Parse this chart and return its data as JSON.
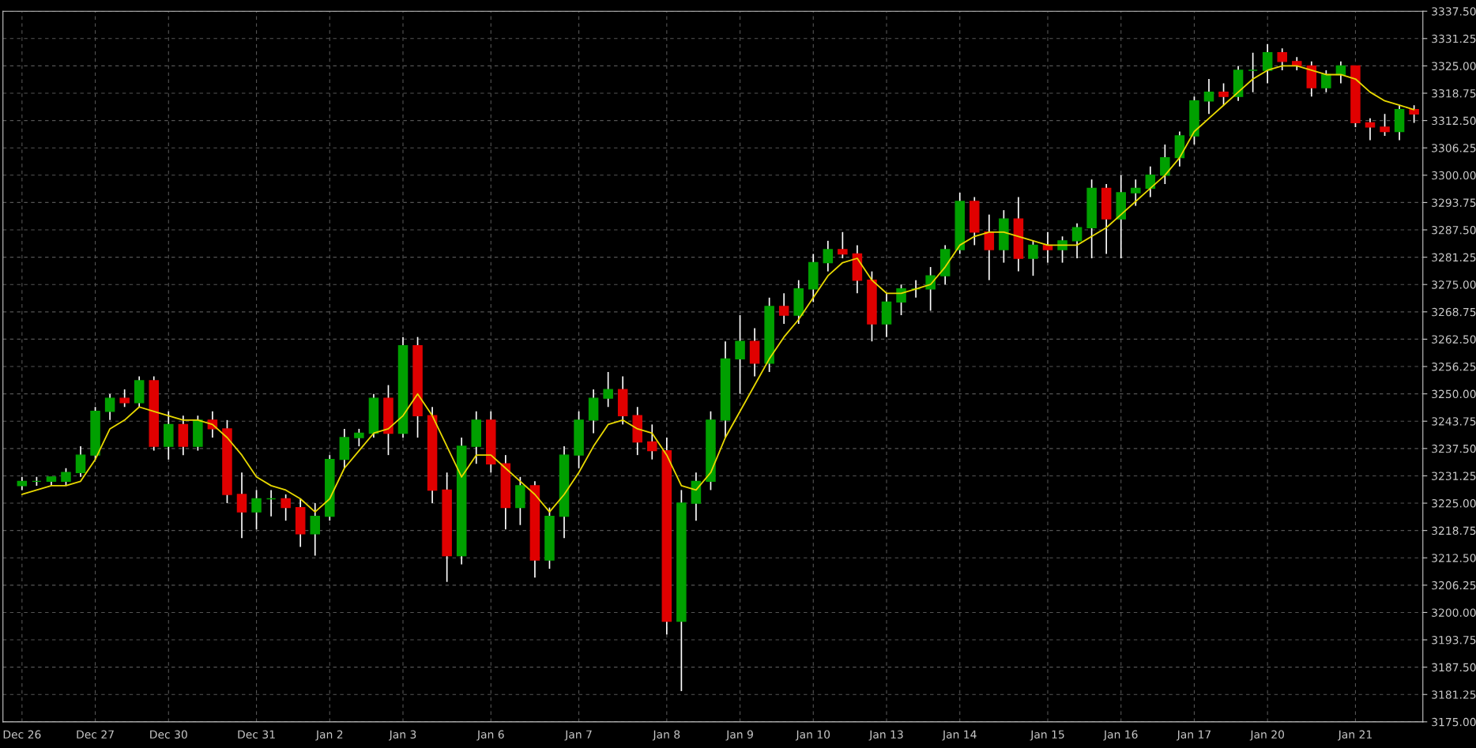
{
  "chart_data": {
    "type": "candlestick",
    "categories": [
      "Dec 26",
      null,
      null,
      null,
      null,
      "Dec 27",
      null,
      null,
      null,
      null,
      "Dec 30",
      null,
      null,
      null,
      null,
      null,
      "Dec 31",
      null,
      null,
      null,
      null,
      "Jan 2",
      null,
      null,
      null,
      null,
      "Jan 3",
      null,
      null,
      null,
      null,
      null,
      "Jan 6",
      null,
      null,
      null,
      null,
      null,
      "Jan 7",
      null,
      null,
      null,
      null,
      null,
      "Jan 8",
      null,
      null,
      null,
      null,
      "Jan 9",
      null,
      null,
      null,
      null,
      "Jan 10",
      null,
      null,
      null,
      null,
      "Jan 13",
      null,
      null,
      null,
      null,
      "Jan 14",
      null,
      null,
      null,
      null,
      null,
      "Jan 15",
      null,
      null,
      null,
      null,
      "Jan 16",
      null,
      null,
      null,
      null,
      "Jan 17",
      null,
      null,
      null,
      null,
      "Jan 20",
      null,
      null,
      null,
      null,
      null,
      "Jan 21",
      null,
      null,
      null,
      null
    ],
    "ohlc": [
      [
        3229,
        3231,
        3228,
        3230
      ],
      [
        3230,
        3231,
        3229,
        3230
      ],
      [
        3230,
        3231,
        3229,
        3231
      ],
      [
        3230,
        3233,
        3229,
        3232
      ],
      [
        3232,
        3238,
        3231,
        3236
      ],
      [
        3236,
        3247,
        3235,
        3246
      ],
      [
        3246,
        3250,
        3244,
        3249
      ],
      [
        3249,
        3251,
        3247,
        3248
      ],
      [
        3248,
        3254,
        3247,
        3253
      ],
      [
        3253,
        3254,
        3237,
        3238
      ],
      [
        3238,
        3246,
        3235,
        3243
      ],
      [
        3243,
        3245,
        3236,
        3238
      ],
      [
        3238,
        3245,
        3237,
        3244
      ],
      [
        3244,
        3246,
        3240,
        3242
      ],
      [
        3242,
        3244,
        3225,
        3227
      ],
      [
        3227,
        3232,
        3217,
        3223
      ],
      [
        3223,
        3228,
        3219,
        3226
      ],
      [
        3226,
        3228,
        3222,
        3226
      ],
      [
        3226,
        3227,
        3221,
        3224
      ],
      [
        3224,
        3226,
        3215,
        3218
      ],
      [
        3218,
        3225,
        3213,
        3222
      ],
      [
        3222,
        3236,
        3221,
        3235
      ],
      [
        3235,
        3242,
        3233,
        3240
      ],
      [
        3240,
        3242,
        3238,
        3241
      ],
      [
        3241,
        3250,
        3240,
        3249
      ],
      [
        3249,
        3252,
        3236,
        3241
      ],
      [
        3241,
        3263,
        3240,
        3261
      ],
      [
        3261,
        3263,
        3240,
        3245
      ],
      [
        3245,
        3247,
        3225,
        3228
      ],
      [
        3228,
        3232,
        3207,
        3213
      ],
      [
        3213,
        3240,
        3211,
        3238
      ],
      [
        3238,
        3246,
        3234,
        3244
      ],
      [
        3244,
        3246,
        3232,
        3234
      ],
      [
        3234,
        3236,
        3219,
        3224
      ],
      [
        3224,
        3231,
        3220,
        3229
      ],
      [
        3229,
        3230,
        3208,
        3212
      ],
      [
        3212,
        3224,
        3210,
        3222
      ],
      [
        3222,
        3238,
        3217,
        3236
      ],
      [
        3236,
        3246,
        3233,
        3244
      ],
      [
        3244,
        3251,
        3241,
        3249
      ],
      [
        3249,
        3255,
        3247,
        3251
      ],
      [
        3251,
        3254,
        3243,
        3245
      ],
      [
        3245,
        3247,
        3236,
        3239
      ],
      [
        3239,
        3243,
        3235,
        3237
      ],
      [
        3237,
        3240,
        3195,
        3198
      ],
      [
        3198,
        3228,
        3182,
        3225
      ],
      [
        3225,
        3232,
        3221,
        3230
      ],
      [
        3230,
        3246,
        3228,
        3244
      ],
      [
        3244,
        3262,
        3240,
        3258
      ],
      [
        3258,
        3268,
        3250,
        3262
      ],
      [
        3262,
        3265,
        3254,
        3257
      ],
      [
        3257,
        3272,
        3255,
        3270
      ],
      [
        3270,
        3273,
        3266,
        3268
      ],
      [
        3268,
        3276,
        3266,
        3274
      ],
      [
        3274,
        3282,
        3271,
        3280
      ],
      [
        3280,
        3285,
        3278,
        3283
      ],
      [
        3283,
        3287,
        3281,
        3282
      ],
      [
        3282,
        3284,
        3273,
        3276
      ],
      [
        3276,
        3278,
        3262,
        3266
      ],
      [
        3266,
        3273,
        3263,
        3271
      ],
      [
        3271,
        3275,
        3268,
        3274
      ],
      [
        3274,
        3276,
        3272,
        3274
      ],
      [
        3274,
        3279,
        3269,
        3277
      ],
      [
        3277,
        3284,
        3275,
        3283
      ],
      [
        3283,
        3296,
        3282,
        3294
      ],
      [
        3294,
        3295,
        3284,
        3287
      ],
      [
        3287,
        3291,
        3276,
        3283
      ],
      [
        3283,
        3292,
        3280,
        3290
      ],
      [
        3290,
        3295,
        3278,
        3281
      ],
      [
        3281,
        3285,
        3277,
        3284
      ],
      [
        3284,
        3287,
        3280,
        3283
      ],
      [
        3283,
        3286,
        3280,
        3285
      ],
      [
        3285,
        3289,
        3281,
        3288
      ],
      [
        3288,
        3299,
        3281,
        3297
      ],
      [
        3297,
        3298,
        3282,
        3290
      ],
      [
        3290,
        3300,
        3281,
        3296
      ],
      [
        3296,
        3299,
        3293,
        3297
      ],
      [
        3297,
        3302,
        3295,
        3300
      ],
      [
        3300,
        3307,
        3298,
        3304
      ],
      [
        3304,
        3310,
        3302,
        3309
      ],
      [
        3309,
        3318,
        3307,
        3317
      ],
      [
        3317,
        3322,
        3314,
        3319
      ],
      [
        3319,
        3321,
        3316,
        3318
      ],
      [
        3318,
        3325,
        3317,
        3324
      ],
      [
        3324,
        3328,
        3319,
        3324
      ],
      [
        3324,
        3330,
        3321,
        3328
      ],
      [
        3328,
        3329,
        3324,
        3326
      ],
      [
        3326,
        3327,
        3324,
        3325
      ],
      [
        3325,
        3326,
        3318,
        3320
      ],
      [
        3320,
        3324,
        3319,
        3323
      ],
      [
        3323,
        3326,
        3321,
        3325
      ],
      [
        3325,
        3325,
        3311,
        3312
      ],
      [
        3312,
        3313,
        3308,
        3311
      ],
      [
        3311,
        3314,
        3309,
        3310
      ],
      [
        3310,
        3316,
        3308,
        3315
      ],
      [
        3315,
        3316,
        3312,
        3314
      ]
    ],
    "colors": [
      "#00a000",
      "#00a000",
      "#00a000",
      "#00a000",
      "#00a000",
      "#00a000",
      "#00a000",
      "#e00000",
      "#00a000",
      "#e00000",
      "#00a000",
      "#e00000",
      "#00a000",
      "#e00000",
      "#e00000",
      "#e00000",
      "#00a000",
      "#00a000",
      "#e00000",
      "#e00000",
      "#00a000",
      "#00a000",
      "#00a000",
      "#00a000",
      "#00a000",
      "#e00000",
      "#00a000",
      "#e00000",
      "#e00000",
      "#e00000",
      "#00a000",
      "#00a000",
      "#e00000",
      "#e00000",
      "#00a000",
      "#e00000",
      "#00a000",
      "#00a000",
      "#00a000",
      "#00a000",
      "#00a000",
      "#e00000",
      "#e00000",
      "#e00000",
      "#e00000",
      "#00a000",
      "#00a000",
      "#00a000",
      "#00a000",
      "#00a000",
      "#e00000",
      "#00a000",
      "#e00000",
      "#00a000",
      "#00a000",
      "#00a000",
      "#e00000",
      "#e00000",
      "#e00000",
      "#00a000",
      "#00a000",
      "#00a000",
      "#00a000",
      "#00a000",
      "#00a000",
      "#e00000",
      "#e00000",
      "#00a000",
      "#e00000",
      "#00a000",
      "#e00000",
      "#00a000",
      "#00a000",
      "#00a000",
      "#e00000",
      "#00a000",
      "#00a000",
      "#00a000",
      "#00a000",
      "#00a000",
      "#00a000",
      "#00a000",
      "#e00000",
      "#00a000",
      "#00a000",
      "#00a000",
      "#e00000",
      "#e00000",
      "#e00000",
      "#00a000",
      "#00a000",
      "#e00000",
      "#e00000",
      "#e00000",
      "#00a000",
      "#e00000"
    ],
    "series": [
      {
        "type": "line",
        "color": "#e8d800",
        "values": [
          3227,
          3228,
          3229,
          3229,
          3230,
          3235,
          3242,
          3244,
          3247,
          3246,
          3245,
          3244,
          3244,
          3243,
          3240,
          3236,
          3231,
          3229,
          3228,
          3226,
          3223,
          3226,
          3233,
          3237,
          3241,
          3242,
          3245,
          3250,
          3245,
          3238,
          3231,
          3236,
          3236,
          3233,
          3230,
          3227,
          3223,
          3227,
          3232,
          3238,
          3243,
          3244,
          3242,
          3241,
          3236,
          3229,
          3228,
          3232,
          3240,
          3246,
          3252,
          3258,
          3263,
          3267,
          3272,
          3277,
          3280,
          3281,
          3276,
          3273,
          3273,
          3274,
          3275,
          3279,
          3284,
          3286,
          3287,
          3287,
          3286,
          3285,
          3284,
          3284,
          3284,
          3286,
          3288,
          3291,
          3294,
          3297,
          3300,
          3304,
          3310,
          3313,
          3316,
          3319,
          3322,
          3324,
          3325,
          3325,
          3324,
          3323,
          3323,
          3322,
          3319,
          3317,
          3316,
          3315
        ]
      }
    ],
    "ylim": [
      3175,
      3337.5
    ],
    "yticks": [
      {
        "value": 3175,
        "label": "3175.00"
      },
      {
        "value": 3181.25,
        "label": "3181.25"
      },
      {
        "value": 3187.5,
        "label": "3187.50"
      },
      {
        "value": 3193.75,
        "label": "3193.75"
      },
      {
        "value": 3200,
        "label": "3200.00"
      },
      {
        "value": 3206.25,
        "label": "3206.25"
      },
      {
        "value": 3212.5,
        "label": "3212.50"
      },
      {
        "value": 3218.75,
        "label": "3218.75"
      },
      {
        "value": 3225,
        "label": "3225.00"
      },
      {
        "value": 3231.25,
        "label": "3231.25"
      },
      {
        "value": 3237.5,
        "label": "3237.50"
      },
      {
        "value": 3243.75,
        "label": "3243.75"
      },
      {
        "value": 3250,
        "label": "3250.00"
      },
      {
        "value": 3256.25,
        "label": "3256.25"
      },
      {
        "value": 3262.5,
        "label": "3262.50"
      },
      {
        "value": 3268.75,
        "label": "3268.75"
      },
      {
        "value": 3275,
        "label": "3275.00"
      },
      {
        "value": 3281.25,
        "label": "3281.25"
      },
      {
        "value": 3287.5,
        "label": "3287.50"
      },
      {
        "value": 3293.75,
        "label": "3293.75"
      },
      {
        "value": 3300,
        "label": "3300.00"
      },
      {
        "value": 3306.25,
        "label": "3306.25"
      },
      {
        "value": 3312.5,
        "label": "3312.50"
      },
      {
        "value": 3318.75,
        "label": "3318.75"
      },
      {
        "value": 3325,
        "label": "3325.00"
      },
      {
        "value": 3331.25,
        "label": "3331.25"
      },
      {
        "value": 3337.5,
        "label": "3337.50"
      }
    ],
    "grid": true
  }
}
